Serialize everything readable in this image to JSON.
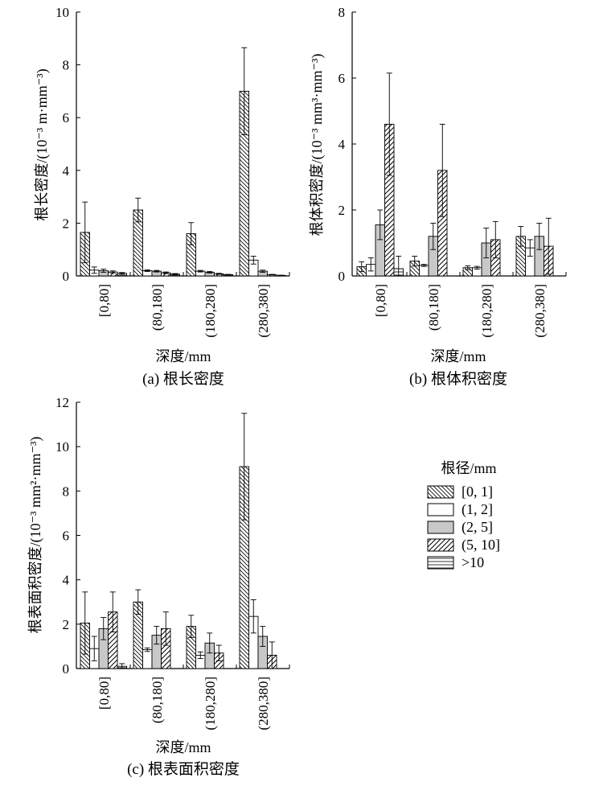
{
  "xlabel": "深度/mm",
  "legend": {
    "title": "根径/mm",
    "entries": [
      "[0, 1]",
      "(1, 2]",
      "(2, 5]",
      "(5, 10]",
      ">10"
    ]
  },
  "chart_data": [
    {
      "type": "bar",
      "caption": "(a) 根长密度",
      "ylabel": "根长密度/(10⁻³ m·mm⁻³)",
      "xlabel": "深度/mm",
      "categories": [
        "[0,80]",
        "(80,180]",
        "(180,280]",
        "(280,380]"
      ],
      "ylim": [
        0,
        10
      ],
      "yticks": [
        0,
        2,
        4,
        6,
        8,
        10
      ],
      "series": [
        {
          "name": "[0, 1]",
          "values": [
            1.65,
            2.5,
            1.6,
            7.0
          ],
          "errors": [
            1.15,
            0.45,
            0.42,
            1.65
          ]
        },
        {
          "name": "(1, 2]",
          "values": [
            0.22,
            0.2,
            0.18,
            0.6
          ],
          "errors": [
            0.12,
            0.03,
            0.03,
            0.15
          ]
        },
        {
          "name": "(2, 5]",
          "values": [
            0.2,
            0.18,
            0.14,
            0.18
          ],
          "errors": [
            0.06,
            0.03,
            0.03,
            0.04
          ]
        },
        {
          "name": "(5, 10]",
          "values": [
            0.15,
            0.12,
            0.08,
            0.05
          ],
          "errors": [
            0.04,
            0.03,
            0.02,
            0.01
          ]
        },
        {
          "name": ">10",
          "values": [
            0.1,
            0.07,
            0.05,
            0.02
          ],
          "errors": [
            0.03,
            0.02,
            0.01,
            0.01
          ]
        }
      ]
    },
    {
      "type": "bar",
      "caption": "(b) 根体积密度",
      "ylabel": "根体积密度/(10⁻³ mm³·mm⁻³)",
      "xlabel": "深度/mm",
      "categories": [
        "[0,80]",
        "(80,180]",
        "(180,280]",
        "(280,380]"
      ],
      "ylim": [
        0,
        8
      ],
      "yticks": [
        0,
        2,
        4,
        6,
        8
      ],
      "series": [
        {
          "name": "[0, 1]",
          "values": [
            0.28,
            0.45,
            0.25,
            1.2
          ],
          "errors": [
            0.15,
            0.15,
            0.06,
            0.3
          ]
        },
        {
          "name": "(1, 2]",
          "values": [
            0.35,
            0.32,
            0.25,
            0.85
          ],
          "errors": [
            0.2,
            0.03,
            0.04,
            0.25
          ]
        },
        {
          "name": "(2, 5]",
          "values": [
            1.55,
            1.2,
            1.0,
            1.2
          ],
          "errors": [
            0.45,
            0.4,
            0.45,
            0.4
          ]
        },
        {
          "name": "(5, 10]",
          "values": [
            4.6,
            3.2,
            1.1,
            0.9
          ],
          "errors": [
            1.55,
            1.4,
            0.55,
            0.85
          ]
        },
        {
          "name": ">10",
          "values": [
            0.22,
            0.0,
            0.0,
            0.0
          ],
          "errors": [
            0.38,
            0.0,
            0.0,
            0.0
          ]
        }
      ]
    },
    {
      "type": "bar",
      "caption": "(c) 根表面积密度",
      "ylabel": "根表面积密度/(10⁻³ mm²·mm⁻³)",
      "xlabel": "深度/mm",
      "categories": [
        "[0,80]",
        "(80,180]",
        "(180,280]",
        "(280,380]"
      ],
      "ylim": [
        0,
        12
      ],
      "yticks": [
        0,
        2,
        4,
        6,
        8,
        10,
        12
      ],
      "series": [
        {
          "name": "[0, 1]",
          "values": [
            2.05,
            3.0,
            1.9,
            9.1
          ],
          "errors": [
            1.4,
            0.55,
            0.5,
            2.4
          ]
        },
        {
          "name": "(1, 2]",
          "values": [
            0.9,
            0.85,
            0.6,
            2.35
          ],
          "errors": [
            0.55,
            0.08,
            0.15,
            0.75
          ]
        },
        {
          "name": "(2, 5]",
          "values": [
            1.8,
            1.5,
            1.15,
            1.45
          ],
          "errors": [
            0.5,
            0.4,
            0.45,
            0.45
          ]
        },
        {
          "name": "(5, 10]",
          "values": [
            2.55,
            1.8,
            0.7,
            0.6
          ],
          "errors": [
            0.9,
            0.75,
            0.35,
            0.6
          ]
        },
        {
          "name": ">10",
          "values": [
            0.1,
            0.0,
            0.0,
            0.0
          ],
          "errors": [
            0.12,
            0.0,
            0.0,
            0.0
          ]
        }
      ]
    }
  ]
}
